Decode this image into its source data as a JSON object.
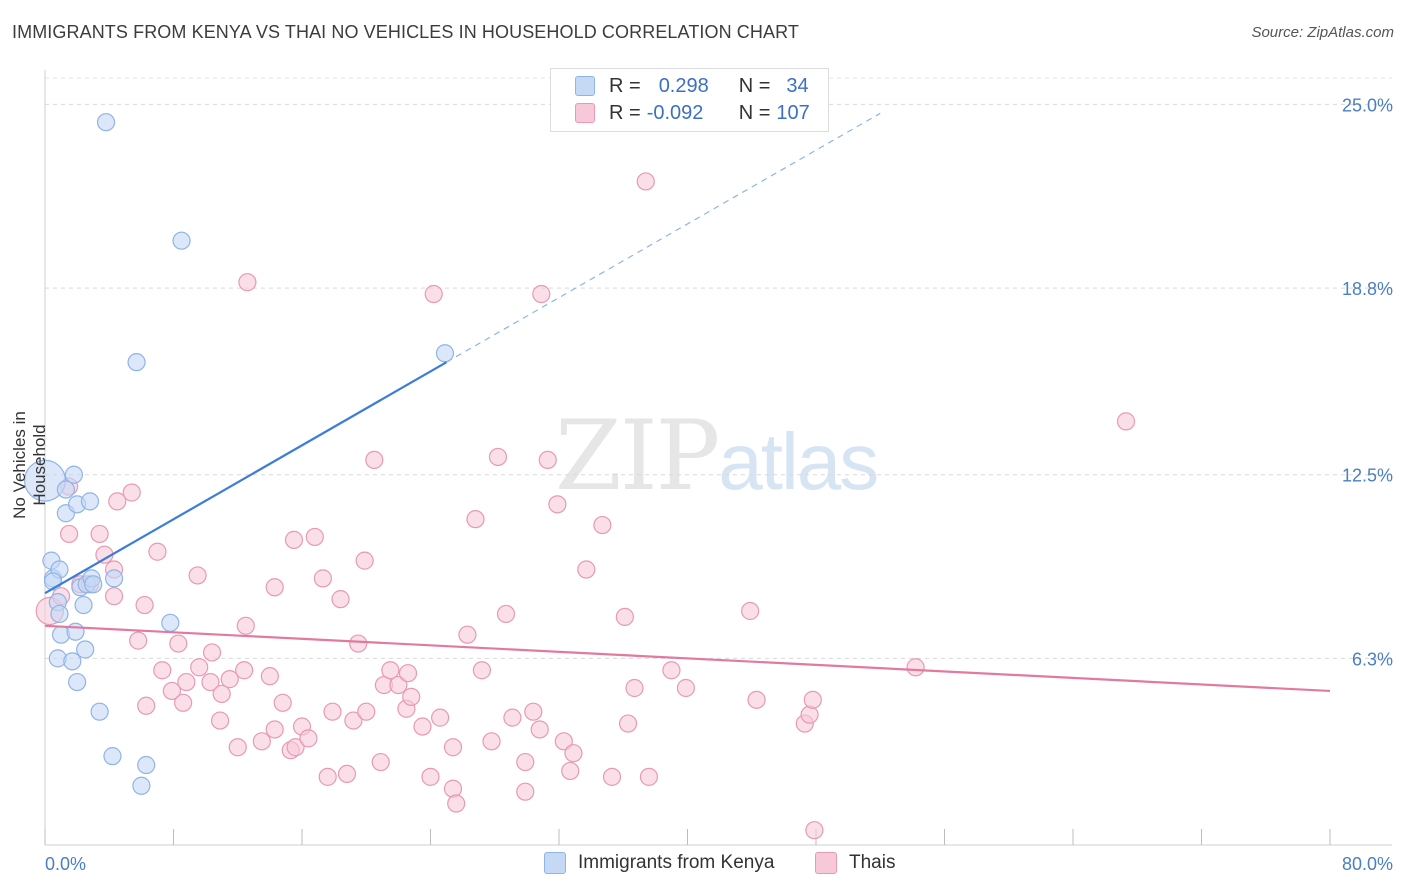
{
  "title": "IMMIGRANTS FROM KENYA VS THAI NO VEHICLES IN HOUSEHOLD CORRELATION CHART",
  "source": "Source: ZipAtlas.com",
  "watermark": {
    "zip": "ZIP",
    "atlas": "atlas"
  },
  "legend": {
    "r_label": "R =",
    "n_label": "N =",
    "series": [
      {
        "name": "Immigrants from Kenya",
        "r": "0.298",
        "n": "34",
        "color": "#8fb4e6",
        "fill": "#c5d9f5"
      },
      {
        "name": "Thais",
        "r": "-0.092",
        "n": "107",
        "color": "#e899b3",
        "fill": "#f7c9d8"
      }
    ]
  },
  "chart_data": {
    "type": "scatter",
    "title": "IMMIGRANTS FROM KENYA VS THAI NO VEHICLES IN HOUSEHOLD CORRELATION CHART",
    "xlabel": "",
    "ylabel": "No Vehicles in Household",
    "xlim": [
      0,
      80
    ],
    "ylim": [
      0,
      26.5
    ],
    "x_tick_labels": [
      "0.0%",
      "80.0%"
    ],
    "y_ticks": [
      6.3,
      12.5,
      18.8,
      25.0
    ],
    "y_tick_labels": [
      "6.3%",
      "12.5%",
      "18.8%",
      "25.0%"
    ],
    "series": [
      {
        "name": "Immigrants from Kenya",
        "color": "#3b7dd8",
        "fill": "#c5d9f5",
        "stroke": "#8fb4e6",
        "trend": {
          "x1": 0,
          "y1": 8.5,
          "x2": 25,
          "y2": 16.3,
          "dash_to_x": 52,
          "dash_to_y": 24.7
        },
        "points": [
          [
            0.0,
            12.3,
            2.4
          ],
          [
            0.4,
            9.6,
            1
          ],
          [
            0.5,
            9.0,
            1
          ],
          [
            0.9,
            9.3,
            1
          ],
          [
            0.5,
            8.9,
            1
          ],
          [
            0.8,
            8.2,
            1
          ],
          [
            0.9,
            7.8,
            1
          ],
          [
            1.3,
            11.2,
            1
          ],
          [
            1.3,
            12.0,
            1
          ],
          [
            1.8,
            12.5,
            1
          ],
          [
            2.0,
            11.5,
            1
          ],
          [
            2.8,
            11.6,
            1
          ],
          [
            2.2,
            8.7,
            1
          ],
          [
            2.6,
            8.8,
            1
          ],
          [
            2.9,
            9.0,
            1
          ],
          [
            3.0,
            8.8,
            1
          ],
          [
            4.3,
            9.0,
            1
          ],
          [
            2.4,
            8.1,
            1
          ],
          [
            1.0,
            7.1,
            1
          ],
          [
            1.9,
            7.2,
            1
          ],
          [
            2.5,
            6.6,
            1
          ],
          [
            0.8,
            6.3,
            1
          ],
          [
            1.7,
            6.2,
            1
          ],
          [
            2.0,
            5.5,
            1
          ],
          [
            3.4,
            4.5,
            1
          ],
          [
            7.8,
            7.5,
            1
          ],
          [
            4.2,
            3.0,
            1
          ],
          [
            6.3,
            2.7,
            1
          ],
          [
            6.0,
            2.0,
            1
          ],
          [
            5.7,
            16.3,
            1
          ],
          [
            8.5,
            20.4,
            1
          ],
          [
            3.8,
            24.4,
            1
          ],
          [
            24.9,
            16.6,
            1
          ]
        ]
      },
      {
        "name": "Thais",
        "color": "#e27aa0",
        "fill": "#f7c9d8",
        "stroke": "#e899b3",
        "trend": {
          "x1": 0,
          "y1": 7.4,
          "x2": 80,
          "y2": 5.2
        },
        "points": [
          [
            0.3,
            7.9,
            1.6
          ],
          [
            1.0,
            8.4,
            1
          ],
          [
            1.5,
            12.1,
            1
          ],
          [
            1.5,
            10.5,
            1
          ],
          [
            3.4,
            10.5,
            1
          ],
          [
            2.2,
            8.8,
            1
          ],
          [
            2.8,
            8.8,
            1
          ],
          [
            3.7,
            9.8,
            1
          ],
          [
            4.3,
            9.3,
            1
          ],
          [
            4.5,
            11.6,
            1
          ],
          [
            5.4,
            11.9,
            1
          ],
          [
            4.3,
            8.4,
            1
          ],
          [
            6.2,
            8.1,
            1
          ],
          [
            7.0,
            9.9,
            1
          ],
          [
            5.8,
            6.9,
            1
          ],
          [
            8.3,
            6.8,
            1
          ],
          [
            7.3,
            5.9,
            1
          ],
          [
            6.3,
            4.7,
            1
          ],
          [
            7.9,
            5.2,
            1
          ],
          [
            8.8,
            5.5,
            1
          ],
          [
            8.6,
            4.8,
            1
          ],
          [
            9.5,
            9.1,
            1
          ],
          [
            9.6,
            6.0,
            1
          ],
          [
            10.3,
            5.5,
            1
          ],
          [
            10.4,
            6.5,
            1
          ],
          [
            10.9,
            4.2,
            1
          ],
          [
            11.5,
            5.6,
            1
          ],
          [
            11.0,
            5.1,
            1
          ],
          [
            12.0,
            3.3,
            1
          ],
          [
            12.4,
            5.9,
            1
          ],
          [
            12.5,
            7.4,
            1
          ],
          [
            12.6,
            19.0,
            1
          ],
          [
            13.5,
            3.5,
            1
          ],
          [
            14.0,
            5.7,
            1
          ],
          [
            14.3,
            8.7,
            1
          ],
          [
            14.8,
            4.8,
            1
          ],
          [
            14.3,
            3.9,
            1
          ],
          [
            15.3,
            3.2,
            1
          ],
          [
            15.6,
            3.3,
            1
          ],
          [
            16.0,
            4.0,
            1
          ],
          [
            16.4,
            3.6,
            1
          ],
          [
            15.5,
            10.3,
            1
          ],
          [
            16.8,
            10.4,
            1
          ],
          [
            17.3,
            9.0,
            1
          ],
          [
            17.6,
            2.3,
            1
          ],
          [
            17.9,
            4.5,
            1
          ],
          [
            18.4,
            8.3,
            1
          ],
          [
            18.8,
            2.4,
            1
          ],
          [
            19.2,
            4.2,
            1
          ],
          [
            19.5,
            6.8,
            1
          ],
          [
            19.9,
            9.6,
            1
          ],
          [
            20.0,
            4.5,
            1
          ],
          [
            20.5,
            13.0,
            1
          ],
          [
            20.9,
            2.8,
            1
          ],
          [
            21.1,
            5.4,
            1
          ],
          [
            21.5,
            5.9,
            1
          ],
          [
            22.0,
            5.4,
            1
          ],
          [
            22.5,
            4.6,
            1
          ],
          [
            22.8,
            5.0,
            1
          ],
          [
            22.6,
            5.8,
            1
          ],
          [
            23.5,
            4.0,
            1
          ],
          [
            24.0,
            2.3,
            1
          ],
          [
            24.2,
            18.6,
            1
          ],
          [
            24.6,
            4.3,
            1
          ],
          [
            25.4,
            3.3,
            1
          ],
          [
            25.4,
            1.9,
            1
          ],
          [
            25.6,
            1.4,
            1
          ],
          [
            26.3,
            7.1,
            1
          ],
          [
            26.8,
            11.0,
            1
          ],
          [
            27.2,
            5.9,
            1
          ],
          [
            27.8,
            3.5,
            1
          ],
          [
            28.7,
            7.8,
            1
          ],
          [
            28.2,
            13.1,
            1
          ],
          [
            29.1,
            4.3,
            1
          ],
          [
            29.9,
            2.8,
            1
          ],
          [
            29.9,
            1.8,
            1
          ],
          [
            30.4,
            4.5,
            1
          ],
          [
            30.8,
            3.9,
            1
          ],
          [
            30.9,
            18.6,
            1
          ],
          [
            31.3,
            13.0,
            1
          ],
          [
            31.9,
            11.5,
            1
          ],
          [
            32.3,
            3.5,
            1
          ],
          [
            32.7,
            2.5,
            1
          ],
          [
            32.9,
            3.1,
            1
          ],
          [
            33.7,
            9.3,
            1
          ],
          [
            34.7,
            10.8,
            1
          ],
          [
            35.3,
            2.3,
            1
          ],
          [
            36.1,
            7.7,
            1
          ],
          [
            36.3,
            4.1,
            1
          ],
          [
            36.7,
            5.3,
            1
          ],
          [
            37.4,
            22.4,
            1
          ],
          [
            37.6,
            2.3,
            1
          ],
          [
            39.0,
            5.9,
            1
          ],
          [
            39.9,
            5.3,
            1
          ],
          [
            43.9,
            7.9,
            1
          ],
          [
            44.3,
            4.9,
            1
          ],
          [
            47.3,
            4.1,
            1
          ],
          [
            47.6,
            4.4,
            1
          ],
          [
            47.8,
            4.9,
            1
          ],
          [
            47.9,
            0.5,
            1
          ],
          [
            54.2,
            6.0,
            1
          ],
          [
            67.3,
            14.3,
            1
          ]
        ]
      }
    ]
  }
}
